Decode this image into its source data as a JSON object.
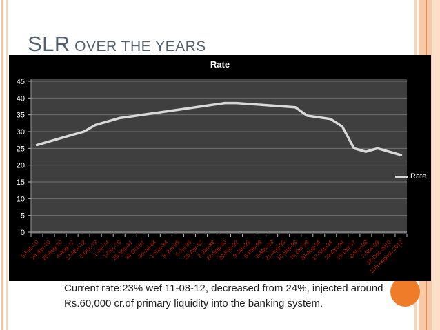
{
  "slide": {
    "title_main": "SLR",
    "title_rest": " OVER THE YEARS",
    "body_text": "Current rate:23% wef 11-08-12, decreased from 24%, injected around  Rs.60,000 cr.of primary liquidity into the banking system."
  },
  "chart_data": {
    "type": "line",
    "title": "Rate",
    "legend_entries": [
      "Rate"
    ],
    "legend_position": "right",
    "categories": [
      "5-Feb-70",
      "24-Apr-70",
      "28-Aug-70",
      "4-Aug-72",
      "17-Nov-72",
      "8-Dec-73",
      "1-Jul-74",
      "1-Dec-78",
      "25-Sep-81",
      "30-Oct-81",
      "28-Jul-84",
      "1-Sep-84",
      "8-Jun-85",
      "6-Jul-85",
      "25-Apr-87",
      "2-Jan-88",
      "22-Sep-90",
      "29-Feb-92",
      "9-Jan-93",
      "6-Feb-93",
      "6-Mar-93",
      "21-Aug-93",
      "18-Sep-93",
      "16-Oct-93",
      "20-Aug-94",
      "17-Sep-94",
      "29-Oct-94",
      "25-Oct-97",
      "8-Nov-08",
      "7-Nov-09",
      "18-Dec-2010",
      "11th August, 2012"
    ],
    "series": [
      {
        "name": "Rate",
        "values": [
          26,
          27,
          28,
          29,
          30,
          32,
          33,
          34,
          34.5,
          35,
          35.5,
          36,
          36.5,
          37,
          37.5,
          38,
          38.5,
          38.5,
          38.25,
          38,
          37.75,
          37.5,
          37.25,
          34.75,
          34.25,
          33.75,
          31.5,
          25,
          24,
          25,
          24,
          23
        ]
      }
    ],
    "ylim": [
      0,
      45
    ],
    "yticks": [
      0,
      5,
      10,
      15,
      20,
      25,
      30,
      35,
      40,
      45
    ],
    "grid": true,
    "colors": {
      "chart_bg": "#000000",
      "plot_bg": "#3f3f3f",
      "gridline": "#707070",
      "axis_line": "#b5b5b5",
      "tick": "#c0c0c0",
      "line": "#d9d9d9",
      "xlabel_color": "#c41a00",
      "ylabel_color": "#ffffff"
    }
  },
  "decor": {
    "accent_circle_color": "#ef7c28",
    "border_peach": "#f6c9a9",
    "border_orange_line": "#df9159",
    "title_color": "#51606c"
  }
}
